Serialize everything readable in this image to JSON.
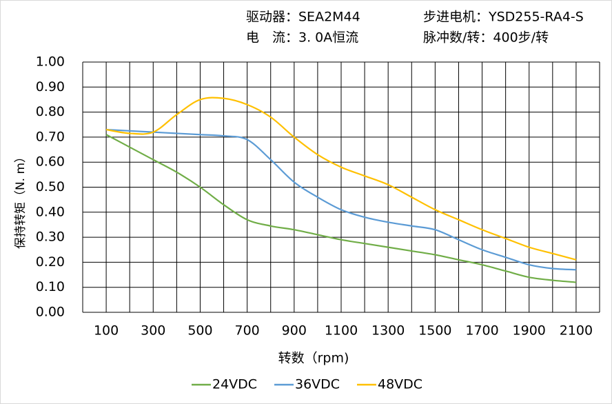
{
  "chart_data": {
    "type": "line",
    "header": [
      "驱动器：SEA2M44",
      "步进电机：YSD255-RA4-S",
      "电　流：3. 0A恒流",
      "脉冲数/转：400步/转"
    ],
    "x_label": "转数（rpm)",
    "y_label": "保持转矩（N. m）",
    "x": [
      100,
      200,
      300,
      400,
      500,
      600,
      700,
      800,
      900,
      1000,
      1100,
      1200,
      1300,
      1400,
      1500,
      1600,
      1700,
      1800,
      1900,
      2000,
      2100
    ],
    "series": [
      {
        "name": "24VDC",
        "color": "#70ad47",
        "values": [
          0.71,
          0.66,
          0.61,
          0.56,
          0.5,
          0.43,
          0.37,
          0.345,
          0.33,
          0.31,
          0.29,
          0.275,
          0.26,
          0.245,
          0.23,
          0.21,
          0.19,
          0.165,
          0.14,
          0.128,
          0.12
        ]
      },
      {
        "name": "36VDC",
        "color": "#5b9bd5",
        "values": [
          0.73,
          0.725,
          0.72,
          0.715,
          0.71,
          0.705,
          0.69,
          0.61,
          0.52,
          0.46,
          0.41,
          0.38,
          0.36,
          0.345,
          0.33,
          0.29,
          0.25,
          0.22,
          0.19,
          0.175,
          0.17
        ]
      },
      {
        "name": "48VDC",
        "color": "#ffc000",
        "values": [
          0.73,
          0.715,
          0.72,
          0.79,
          0.85,
          0.855,
          0.83,
          0.78,
          0.7,
          0.63,
          0.58,
          0.545,
          0.51,
          0.46,
          0.41,
          0.37,
          0.33,
          0.295,
          0.26,
          0.235,
          0.21
        ]
      }
    ],
    "xlim": [
      0,
      2200
    ],
    "xticks": [
      100,
      300,
      500,
      700,
      900,
      1100,
      1300,
      1500,
      1700,
      1900,
      2100
    ],
    "x_minor_grid": [
      0,
      200,
      400,
      600,
      800,
      1000,
      1200,
      1400,
      1600,
      1800,
      2000,
      2200
    ],
    "ylim": [
      0,
      1
    ],
    "yticks": [
      {
        "value": 0,
        "label": "0.00"
      },
      {
        "value": 0.1,
        "label": "0.10"
      },
      {
        "value": 0.2,
        "label": "0.20"
      },
      {
        "value": 0.3,
        "label": "0.30"
      },
      {
        "value": 0.4,
        "label": "0.40"
      },
      {
        "value": 0.5,
        "label": "0.50"
      },
      {
        "value": 0.6,
        "label": "0.60"
      },
      {
        "value": 0.7,
        "label": "0.70"
      },
      {
        "value": 0.8,
        "label": "0.80"
      },
      {
        "value": 0.9,
        "label": "0.90"
      },
      {
        "value": 1,
        "label": "1.00"
      }
    ],
    "grid": true,
    "legend": "bottom"
  }
}
